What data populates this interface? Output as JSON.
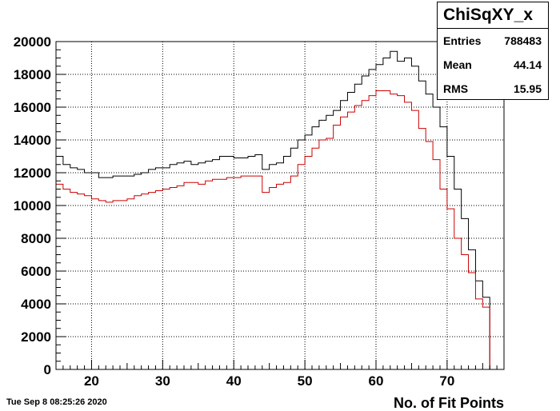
{
  "stats": {
    "title": "ChiSqXY_x",
    "entries_label": "Entries",
    "entries_value": "788483",
    "mean_label": "Mean",
    "mean_value": "44.14",
    "rms_label": "RMS",
    "rms_value": "15.95"
  },
  "footer": {
    "timestamp": "Tue Sep  8 08:25:26 2020"
  },
  "colors": {
    "black_series": "#000000",
    "red_series": "#cc0000",
    "grid": "#000000"
  },
  "chart_data": {
    "type": "histogram",
    "xlabel": "No. of Fit Points",
    "ylabel": "",
    "xlim": [
      15,
      78
    ],
    "ylim": [
      0,
      20000
    ],
    "x_ticks": [
      20,
      30,
      40,
      50,
      60,
      70
    ],
    "y_ticks": [
      0,
      2000,
      4000,
      6000,
      8000,
      10000,
      12000,
      14000,
      16000,
      18000,
      20000
    ],
    "grid": true,
    "bin_width": 1,
    "x_start": 15,
    "series": [
      {
        "color": "#000000",
        "values": [
          13000,
          12500,
          12300,
          12200,
          12000,
          12000,
          11700,
          11700,
          11800,
          11800,
          11800,
          11900,
          12000,
          12200,
          12300,
          12300,
          12500,
          12600,
          12700,
          12500,
          12600,
          12700,
          12800,
          13000,
          13000,
          12900,
          12900,
          13000,
          13100,
          12200,
          12500,
          12600,
          13000,
          13500,
          14000,
          14300,
          14800,
          15200,
          15500,
          15800,
          16400,
          16900,
          17400,
          17900,
          18300,
          18600,
          19000,
          19400,
          18800,
          19000,
          18500,
          17600,
          16800,
          16000,
          14800,
          13000,
          11000,
          9200,
          7300,
          5400,
          4400,
          0
        ]
      },
      {
        "color": "#cc0000",
        "values": [
          11300,
          11000,
          10800,
          10700,
          10600,
          10400,
          10300,
          10200,
          10300,
          10300,
          10400,
          10600,
          10700,
          10800,
          10900,
          11000,
          11100,
          11200,
          11400,
          11400,
          11300,
          11500,
          11600,
          11600,
          11700,
          11700,
          11800,
          11800,
          11800,
          10800,
          11100,
          11300,
          11400,
          11800,
          12500,
          13000,
          13500,
          14000,
          14100,
          14900,
          15400,
          15700,
          16100,
          16400,
          16700,
          17000,
          17000,
          16800,
          16700,
          16300,
          15800,
          14700,
          13900,
          12800,
          11000,
          9800,
          8000,
          7000,
          5900,
          4300,
          3800,
          0
        ]
      }
    ]
  }
}
